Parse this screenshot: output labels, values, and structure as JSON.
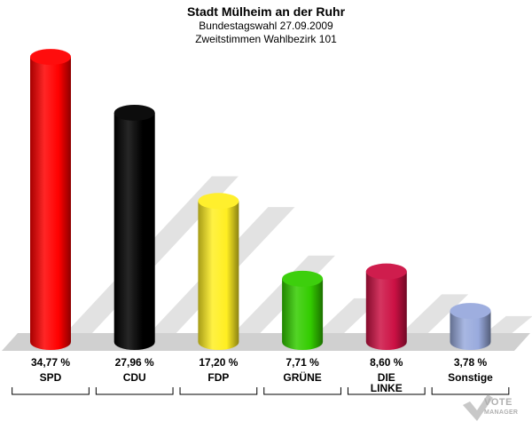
{
  "header": {
    "title": "Stadt Mülheim an der Ruhr",
    "subtitle1": "Bundestagswahl 27.09.2009",
    "subtitle2": "Zweitstimmen Wahlbezirk 101"
  },
  "chart_data": {
    "type": "bar",
    "title": "Stadt Mülheim an der Ruhr",
    "subtitle": "Bundestagswahl 27.09.2009 / Zweitstimmen Wahlbezirk 101",
    "categories": [
      "SPD",
      "CDU",
      "FDP",
      "GRÜNE",
      "DIE LINKE",
      "Sonstige"
    ],
    "category_lines": [
      [
        "SPD"
      ],
      [
        "CDU"
      ],
      [
        "FDP"
      ],
      [
        "GRÜNE"
      ],
      [
        "DIE",
        "LINKE"
      ],
      [
        "Sonstige"
      ]
    ],
    "values": [
      34.77,
      27.96,
      17.2,
      7.71,
      8.6,
      3.78
    ],
    "value_labels": [
      "34,77 %",
      "27,96 %",
      "17,20 %",
      "7,71 %",
      "8,60 %",
      "3,78 %"
    ],
    "colors": [
      "#ff0000",
      "#000000",
      "#ffee22",
      "#33cc00",
      "#cc1144",
      "#99aadd"
    ],
    "ylim": [
      0,
      35
    ]
  },
  "logo": {
    "line1": "VOTE",
    "line2": "MANAGER"
  }
}
